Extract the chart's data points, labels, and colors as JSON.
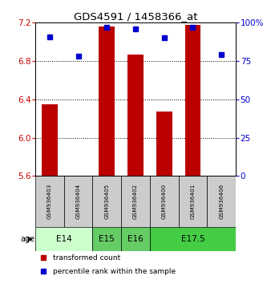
{
  "title": "GDS4591 / 1458366_at",
  "samples": [
    "GSM936403",
    "GSM936404",
    "GSM936405",
    "GSM936402",
    "GSM936400",
    "GSM936401",
    "GSM936406"
  ],
  "red_values": [
    6.35,
    5.57,
    7.16,
    6.87,
    6.27,
    7.18,
    5.57
  ],
  "blue_values": [
    91,
    78,
    97,
    96,
    90,
    97,
    79
  ],
  "y_min": 5.6,
  "y_max": 7.2,
  "y_ticks": [
    5.6,
    6.0,
    6.4,
    6.8,
    7.2
  ],
  "y2_ticks": [
    0,
    25,
    50,
    75,
    100
  ],
  "y2_tick_labels": [
    "0",
    "25",
    "50",
    "75",
    "100%"
  ],
  "bar_color": "#bb0000",
  "dot_color": "#0000cc",
  "bg_color": "#cccccc",
  "left_label_color": "#cc0000",
  "right_label_color": "#0000cc",
  "group_defs": [
    {
      "label": "E14",
      "indices": [
        0,
        1
      ],
      "color": "#ccffcc"
    },
    {
      "label": "E15",
      "indices": [
        2
      ],
      "color": "#66cc66"
    },
    {
      "label": "E16",
      "indices": [
        3
      ],
      "color": "#66cc66"
    },
    {
      "label": "E17.5",
      "indices": [
        4,
        5,
        6
      ],
      "color": "#44cc44"
    }
  ],
  "legend_red": "transformed count",
  "legend_blue": "percentile rank within the sample",
  "age_label": "age"
}
